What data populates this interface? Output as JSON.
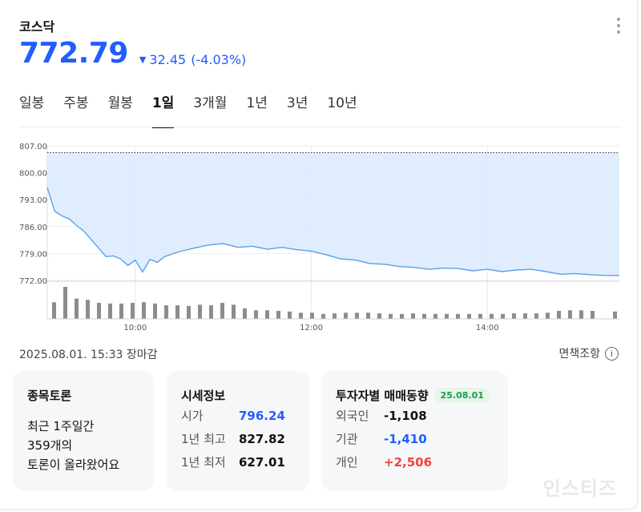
{
  "header": {
    "title": "코스닥",
    "price": "772.79",
    "change_arrow": "▼",
    "change_value": "32.45",
    "change_pct": "(-4.03%)"
  },
  "tabs": [
    {
      "label": "일봉",
      "active": false
    },
    {
      "label": "주봉",
      "active": false
    },
    {
      "label": "월봉",
      "active": false
    },
    {
      "label": "1일",
      "active": true
    },
    {
      "label": "3개월",
      "active": false
    },
    {
      "label": "1년",
      "active": false
    },
    {
      "label": "3년",
      "active": false
    },
    {
      "label": "10년",
      "active": false
    }
  ],
  "colors": {
    "accent_blue": "#1f5eff",
    "down_blue": "#1f5eff",
    "up_red": "#f0433a",
    "area_fill": "#dbeafe",
    "line": "#5aa0e6",
    "volume_bar": "#8c8c8c",
    "badge_green": "#1e9a4b"
  },
  "chart_data": {
    "type": "area",
    "y_ticks": [
      "807.00",
      "800.00",
      "793.00",
      "786.00",
      "779.00",
      "772.00"
    ],
    "ylim": [
      772,
      807
    ],
    "x_ticks": [
      "10:00",
      "12:00",
      "14:00"
    ],
    "xlim": [
      "09:00",
      "15:30"
    ],
    "reference_line": 805.24,
    "series": [
      {
        "x": [
          "09:00",
          "09:05",
          "09:10",
          "09:15",
          "09:20",
          "09:25",
          "09:30",
          "09:35",
          "09:40",
          "09:45",
          "09:50",
          "09:55",
          "10:00",
          "10:05",
          "10:10",
          "10:15",
          "10:20",
          "10:30",
          "10:40",
          "10:50",
          "11:00",
          "11:10",
          "11:20",
          "11:30",
          "11:40",
          "11:50",
          "12:00",
          "12:10",
          "12:20",
          "12:30",
          "12:40",
          "12:50",
          "13:00",
          "13:10",
          "13:20",
          "13:30",
          "13:40",
          "13:50",
          "14:00",
          "14:10",
          "14:20",
          "14:30",
          "14:40",
          "14:50",
          "15:00",
          "15:10",
          "15:20",
          "15:30"
        ],
        "values": [
          796.2,
          790.0,
          788.8,
          788.0,
          786.3,
          784.8,
          782.6,
          780.4,
          778.2,
          778.4,
          777.6,
          775.9,
          777.3,
          774.2,
          777.5,
          776.7,
          778.2,
          779.5,
          780.4,
          781.2,
          781.6,
          780.6,
          780.9,
          780.1,
          780.6,
          780.0,
          779.6,
          778.7,
          777.6,
          777.3,
          776.4,
          776.2,
          775.6,
          775.4,
          774.9,
          775.2,
          775.1,
          774.5,
          774.9,
          774.3,
          774.7,
          774.9,
          774.3,
          773.6,
          773.8,
          773.5,
          773.3,
          773.3
        ]
      }
    ],
    "volume": [
      27,
      52,
      33,
      31,
      26,
      25,
      25,
      26,
      27,
      25,
      22,
      22,
      21,
      23,
      22,
      26,
      23,
      17,
      14,
      14,
      13,
      12,
      10,
      10,
      8,
      9,
      10,
      10,
      10,
      9,
      8,
      8,
      9,
      8,
      8,
      8,
      8,
      8,
      8,
      8,
      8,
      9,
      9,
      9,
      10,
      13,
      14,
      14,
      13,
      0,
      12
    ]
  },
  "status": {
    "timestamp": "2025.08.01. 15:33 장마감",
    "disclaimer": "면책조항",
    "info_glyph": "i"
  },
  "discussion": {
    "title": "종목토론",
    "line1": "최근 1주일간",
    "line2": "359개의",
    "line3": "토론이 올라왔어요"
  },
  "market_info": {
    "title": "시세정보",
    "rows": [
      {
        "label": "시가",
        "value": "796.24"
      },
      {
        "label": "1년 최고",
        "value": "827.82"
      },
      {
        "label": "1년 최저",
        "value": "627.01"
      }
    ]
  },
  "investors": {
    "title": "투자자별 매매동향",
    "date": "25.08.01",
    "rows": [
      {
        "label": "외국인",
        "value": "-1,108"
      },
      {
        "label": "기관",
        "value": "-1,410"
      },
      {
        "label": "개인",
        "value": "+2,506"
      }
    ]
  },
  "watermark": "인스티즈"
}
